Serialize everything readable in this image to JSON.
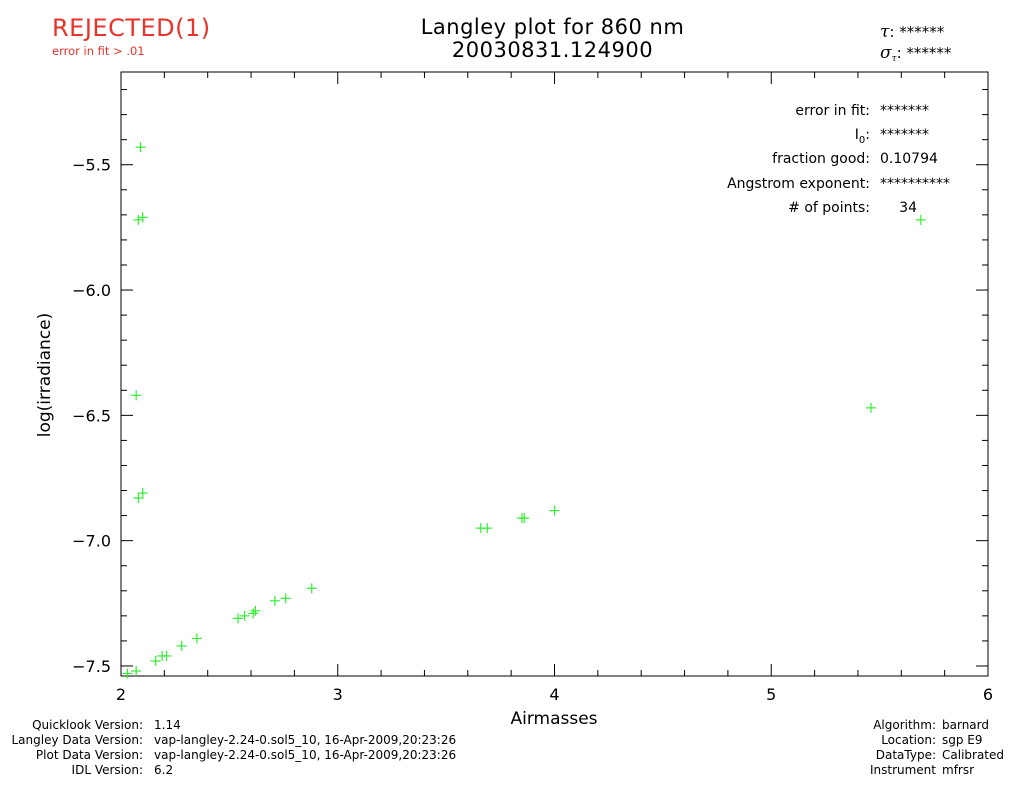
{
  "status": {
    "label": "REJECTED(1)",
    "reason": "error in fit > .01",
    "color": "#e8332a"
  },
  "title": {
    "line1": "Langley plot for 860 nm",
    "line2": "20030831.124900"
  },
  "tau": {
    "symbol": "τ",
    "value": "******"
  },
  "sigma_tau": {
    "symbol": "σ",
    "sub": "τ",
    "value": "******"
  },
  "stats": [
    {
      "label": "error in fit:",
      "value": "*******"
    },
    {
      "label": "I",
      "label_sub": "0",
      "label_suffix": ":",
      "value": "*******"
    },
    {
      "label": "fraction good:",
      "value": "0.10794"
    },
    {
      "label": "Angstrom exponent:",
      "value": "**********"
    },
    {
      "label": "# of points:",
      "value": "34"
    }
  ],
  "chart_data": {
    "type": "scatter",
    "xlabel": "Airmasses",
    "ylabel": "log(irradiance)",
    "xlim": [
      2,
      6
    ],
    "ylim": [
      -7.54,
      -5.13
    ],
    "xticks": [
      2,
      3,
      4,
      5,
      6
    ],
    "xtick_labels": [
      "2",
      "3",
      "4",
      "5",
      "6"
    ],
    "yticks": [
      -7.5,
      -7.0,
      -6.5,
      -6.0,
      -5.5
    ],
    "ytick_labels": [
      "−7.5",
      "−7.0",
      "−6.5",
      "−6.0",
      "−5.5"
    ],
    "marker": "+",
    "color": "#33ee33",
    "grid": false,
    "points": [
      [
        2.03,
        -7.53
      ],
      [
        2.07,
        -7.52
      ],
      [
        2.09,
        -5.43
      ],
      [
        2.08,
        -5.72
      ],
      [
        2.1,
        -5.71
      ],
      [
        2.07,
        -6.42
      ],
      [
        2.08,
        -6.83
      ],
      [
        2.1,
        -6.81
      ],
      [
        2.16,
        -7.48
      ],
      [
        2.19,
        -7.46
      ],
      [
        2.21,
        -7.46
      ],
      [
        2.28,
        -7.42
      ],
      [
        2.35,
        -7.39
      ],
      [
        2.54,
        -7.31
      ],
      [
        2.57,
        -7.3
      ],
      [
        2.61,
        -7.29
      ],
      [
        2.62,
        -7.28
      ],
      [
        2.71,
        -7.24
      ],
      [
        2.76,
        -7.23
      ],
      [
        2.88,
        -7.19
      ],
      [
        3.66,
        -6.95
      ],
      [
        3.69,
        -6.95
      ],
      [
        3.85,
        -6.91
      ],
      [
        3.86,
        -6.91
      ],
      [
        4.0,
        -6.88
      ],
      [
        5.46,
        -6.47
      ],
      [
        5.69,
        -5.72
      ]
    ]
  },
  "footer_left": [
    {
      "label": "Quicklook Version:",
      "value": "1.14"
    },
    {
      "label": "Langley Data Version:",
      "value": "vap-langley-2.24-0.sol5_10, 16-Apr-2009,20:23:26"
    },
    {
      "label": "Plot Data Version:",
      "value": "vap-langley-2.24-0.sol5_10, 16-Apr-2009,20:23:26"
    },
    {
      "label": "IDL Version:",
      "value": "6.2"
    }
  ],
  "footer_right": [
    {
      "label": "Algorithm:",
      "value": "barnard"
    },
    {
      "label": "Location:",
      "value": "sgp E9"
    },
    {
      "label": "DataType:",
      "value": "Calibrated"
    },
    {
      "label": "Instrument",
      "value": "mfrsr"
    }
  ]
}
